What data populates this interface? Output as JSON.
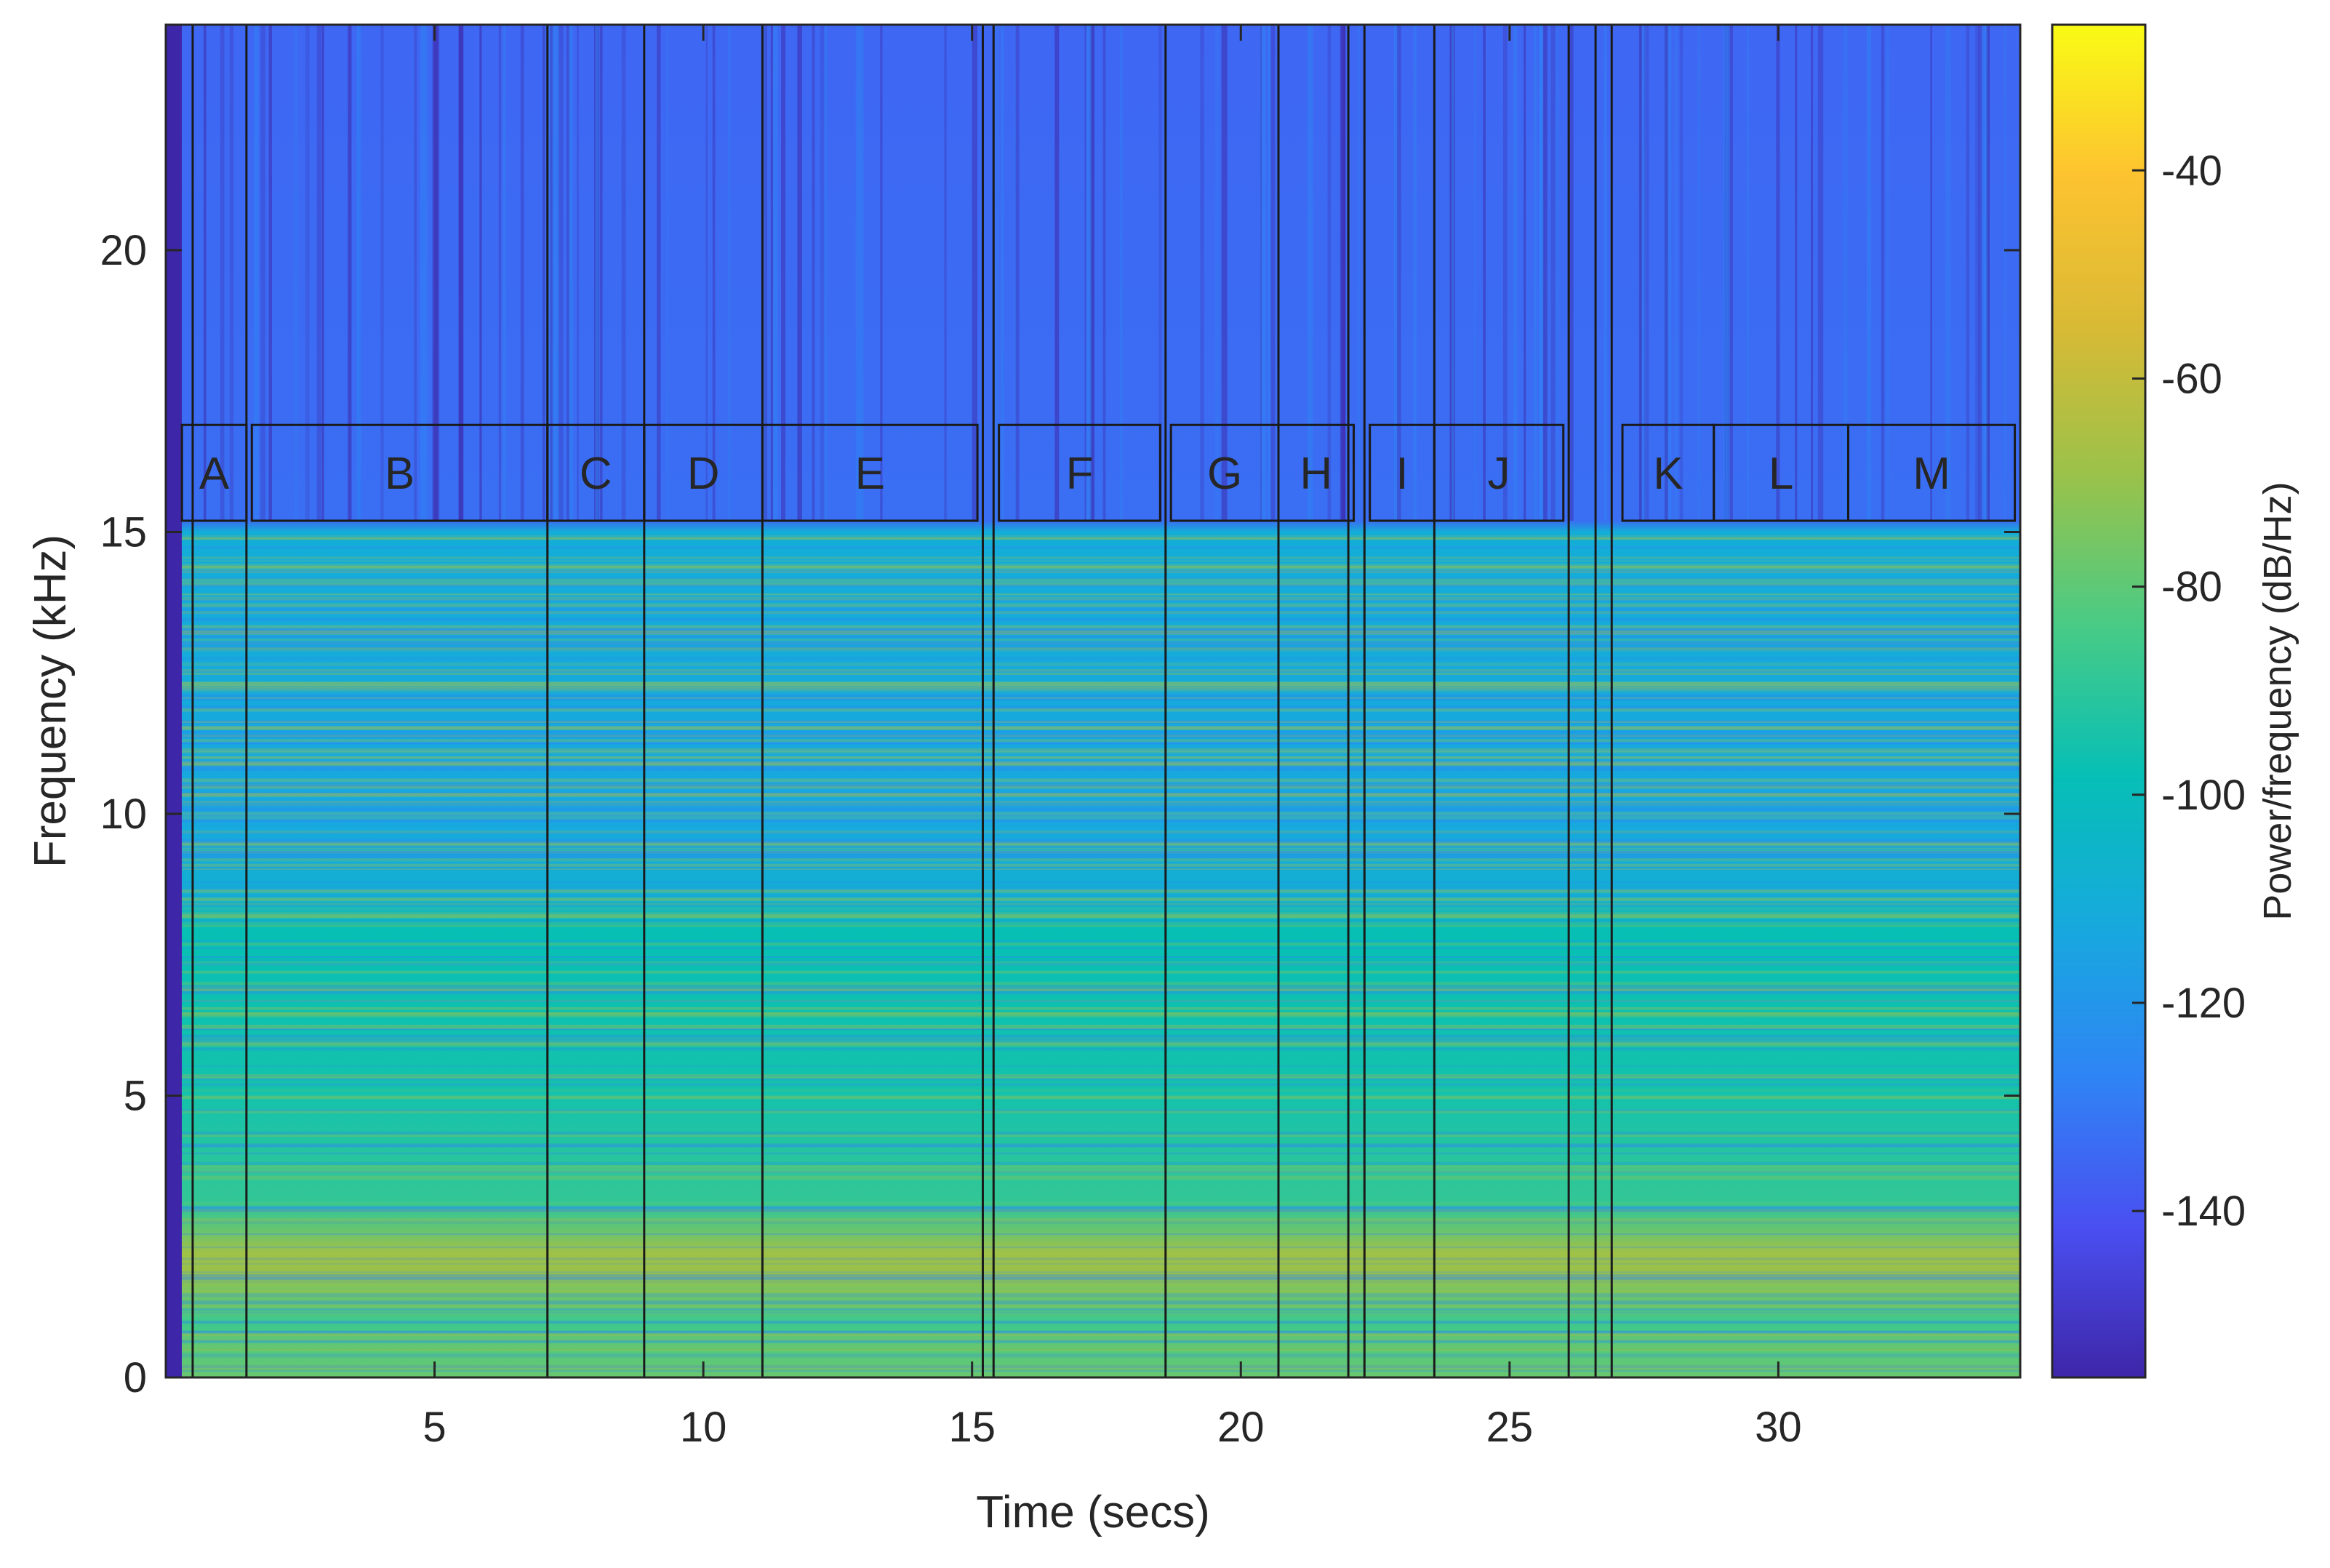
{
  "chart_data": {
    "type": "heatmap",
    "title": "",
    "xlabel": "Time (secs)",
    "ylabel": "Frequency (kHz)",
    "xlim": [
      0,
      34.5
    ],
    "ylim": [
      0,
      24
    ],
    "xticks": [
      5,
      10,
      15,
      20,
      25,
      30
    ],
    "yticks": [
      0,
      5,
      10,
      15,
      20
    ],
    "colorbar": {
      "label": "Power/frequency (dB/Hz)",
      "range": [
        -156,
        -26
      ],
      "ticks": [
        -40,
        -60,
        -80,
        -100,
        -120,
        -140
      ],
      "colormap": "parula",
      "colors": [
        "#3e26a8",
        "#4a4ff1",
        "#2f84f5",
        "#17a9de",
        "#06bfb6",
        "#48cb86",
        "#9ac24a",
        "#d9ba35",
        "#fdc330",
        "#f9fb15"
      ]
    },
    "power_profile": [
      {
        "freq_khz": 24.0,
        "db": -135
      },
      {
        "freq_khz": 15.2,
        "db": -133
      },
      {
        "freq_khz": 15.0,
        "db": -110
      },
      {
        "freq_khz": 12.0,
        "db": -112
      },
      {
        "freq_khz": 10.0,
        "db": -113
      },
      {
        "freq_khz": 8.5,
        "db": -108
      },
      {
        "freq_khz": 8.0,
        "db": -98
      },
      {
        "freq_khz": 5.0,
        "db": -95
      },
      {
        "freq_khz": 3.0,
        "db": -88
      },
      {
        "freq_khz": 2.2,
        "db": -68
      },
      {
        "freq_khz": 1.8,
        "db": -70
      },
      {
        "freq_khz": 1.0,
        "db": -86
      },
      {
        "freq_khz": 0.0,
        "db": -78
      }
    ],
    "boundaries_secs": [
      0.5,
      1.5,
      7.1,
      8.9,
      11.1,
      15.2,
      15.4,
      18.6,
      20.7,
      22.0,
      22.3,
      23.6,
      26.1,
      26.6,
      26.9
    ],
    "segments": [
      {
        "label": "A",
        "start": 0.3,
        "end": 1.5
      },
      {
        "label": "B",
        "start": 1.6,
        "end": 7.1
      },
      {
        "label": "C",
        "start": 7.1,
        "end": 8.9
      },
      {
        "label": "D",
        "start": 8.9,
        "end": 11.1
      },
      {
        "label": "E",
        "start": 11.1,
        "end": 15.1
      },
      {
        "label": "F",
        "start": 15.5,
        "end": 18.5
      },
      {
        "label": "G",
        "start": 18.7,
        "end": 20.7
      },
      {
        "label": "H",
        "start": 20.7,
        "end": 22.1
      },
      {
        "label": "I",
        "start": 22.4,
        "end": 23.6
      },
      {
        "label": "J",
        "start": 23.6,
        "end": 26.0
      },
      {
        "label": "K",
        "start": 27.1,
        "end": 28.8
      },
      {
        "label": "L",
        "start": 28.8,
        "end": 31.3
      },
      {
        "label": "M",
        "start": 31.3,
        "end": 34.4
      }
    ],
    "grid": false
  }
}
